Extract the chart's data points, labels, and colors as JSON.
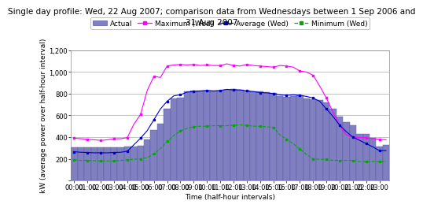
{
  "title_line1": "Single day profile: Wed, 22 Aug 2007; comparison data from Wednesdays between 1 Sep 2006 and",
  "title_line2": "31 Aug 2007",
  "xlabel": "Time (half-hour intervals)",
  "ylabel": "kW (average power over half-hour interval)",
  "ylim": [
    0,
    1200
  ],
  "yticks": [
    0,
    200,
    400,
    600,
    800,
    1000,
    1200
  ],
  "ytick_labels": [
    "",
    "200",
    "400",
    "600",
    "800",
    "1,000",
    "1,200"
  ],
  "bar_color": "#8080c0",
  "bar_edge_color": "#5555aa",
  "background_color": "#ffffff",
  "actual": [
    305,
    305,
    305,
    305,
    305,
    305,
    305,
    305,
    310,
    315,
    320,
    375,
    465,
    520,
    660,
    755,
    760,
    820,
    830,
    830,
    830,
    830,
    830,
    835,
    840,
    835,
    825,
    820,
    820,
    815,
    810,
    775,
    770,
    775,
    785,
    755,
    745,
    740,
    720,
    660,
    590,
    540,
    510,
    430,
    430,
    390,
    315,
    330
  ],
  "maximum": [
    390,
    385,
    380,
    375,
    370,
    375,
    385,
    385,
    395,
    520,
    610,
    830,
    960,
    950,
    1055,
    1065,
    1070,
    1065,
    1070,
    1060,
    1065,
    1060,
    1060,
    1075,
    1060,
    1055,
    1070,
    1060,
    1055,
    1050,
    1045,
    1060,
    1055,
    1045,
    1010,
    1000,
    970,
    870,
    760,
    630,
    510,
    420,
    400,
    395,
    395,
    385,
    380,
    375
  ],
  "average": [
    265,
    260,
    258,
    255,
    255,
    255,
    258,
    260,
    270,
    330,
    390,
    460,
    560,
    660,
    730,
    780,
    790,
    815,
    820,
    825,
    830,
    825,
    830,
    840,
    835,
    835,
    825,
    820,
    810,
    808,
    800,
    790,
    785,
    790,
    785,
    775,
    760,
    730,
    660,
    590,
    510,
    450,
    400,
    370,
    340,
    310,
    275,
    275
  ],
  "minimum": [
    190,
    185,
    185,
    182,
    180,
    180,
    180,
    185,
    190,
    195,
    200,
    210,
    245,
    295,
    360,
    415,
    455,
    480,
    495,
    500,
    500,
    505,
    505,
    505,
    508,
    512,
    508,
    500,
    500,
    495,
    490,
    420,
    380,
    340,
    290,
    240,
    200,
    195,
    195,
    185,
    185,
    185,
    185,
    175,
    175,
    175,
    175,
    175
  ],
  "x_tick_positions": [
    0,
    2,
    4,
    6,
    8,
    10,
    12,
    14,
    16,
    18,
    20,
    22,
    24,
    26,
    28,
    30,
    32,
    34,
    36,
    38,
    40,
    42,
    44,
    46
  ],
  "x_tick_labels": [
    "00:00",
    "01:00",
    "02:00",
    "03:00",
    "04:00",
    "05:00",
    "06:00",
    "07:00",
    "08:00",
    "09:00",
    "10:00",
    "11:00",
    "12:00",
    "13:00",
    "14:00",
    "15:00",
    "16:00",
    "17:00",
    "18:00",
    "19:00",
    "20:00",
    "21:00",
    "22:00",
    "23:00"
  ],
  "legend_labels": [
    "Actual",
    "Maximum (Wed)",
    "Average (Wed)",
    "Minimum (Wed)"
  ],
  "max_color": "#ff00ff",
  "avg_color": "#0000cc",
  "min_color": "#00aa00",
  "title_fontsize": 7.5,
  "axis_label_fontsize": 6.5,
  "tick_fontsize": 6,
  "legend_fontsize": 6.5
}
